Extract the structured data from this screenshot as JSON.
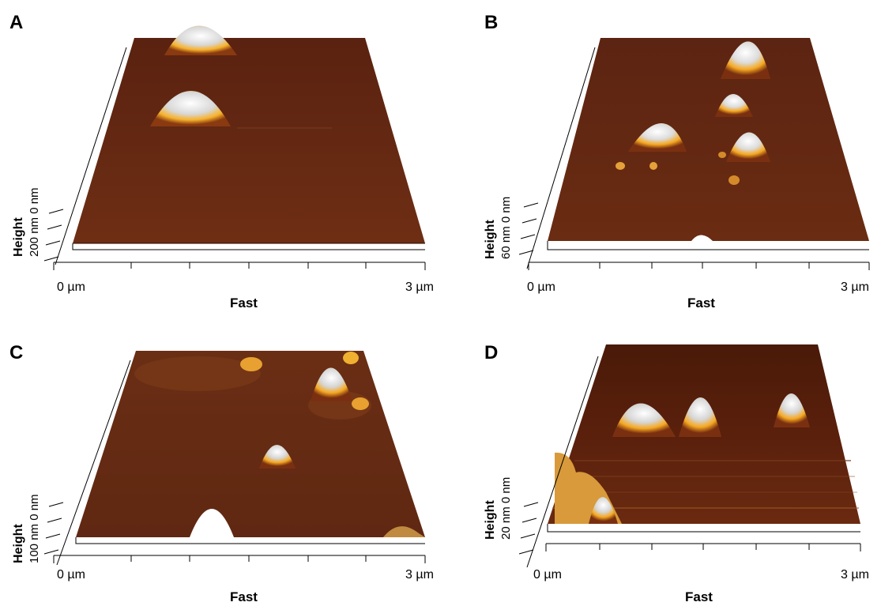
{
  "panels": [
    {
      "label": "A",
      "x_min": "0 µm",
      "x_max": "3 µm",
      "x_axis": "Fast",
      "z_scale": "200 nm 0 nm",
      "z_axis": "Height"
    },
    {
      "label": "B",
      "x_min": "0 µm",
      "x_max": "3 µm",
      "x_axis": "Fast",
      "z_scale": "60 nm 0 nm",
      "z_axis": "Height"
    },
    {
      "label": "C",
      "x_min": "0 µm",
      "x_max": "3 µm",
      "x_axis": "Fast",
      "z_scale": "100 nm 0 nm",
      "z_axis": "Height"
    },
    {
      "label": "D",
      "x_min": "0 µm",
      "x_max": "3 µm",
      "x_axis": "Fast",
      "z_scale": "20 nm 0 nm",
      "z_axis": "Height"
    }
  ],
  "colors": {
    "surface_dark": "#4a1a08",
    "surface_mid": "#6e2e12",
    "peak_gold": "#f5a418",
    "peak_white": "#ffffff"
  }
}
